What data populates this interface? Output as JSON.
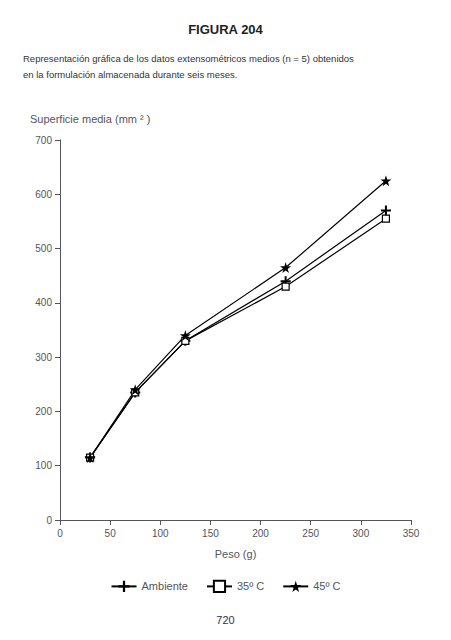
{
  "chart_data": {
    "type": "line",
    "title": "FIGURA 204",
    "subtitle": [
      "Representación gráfica de los datos extensométricos medios (n = 5) obtenidos",
      "en la formulación almacenada durante seis meses."
    ],
    "annotations": [
      "720"
    ],
    "xlabel": "Peso (g)",
    "ylabel": "Superficie media (mm ² )",
    "x": [
      30,
      75,
      125,
      225,
      325
    ],
    "series": [
      {
        "name": "Ambiente",
        "color": "#000000",
        "marker": "plus",
        "values": [
          115,
          235,
          330,
          440,
          570
        ]
      },
      {
        "name": "35º C",
        "color": "#000000",
        "marker": "square",
        "values": [
          115,
          235,
          330,
          430,
          555
        ]
      },
      {
        "name": "45º C",
        "color": "#000000",
        "marker": "star",
        "values": [
          115,
          240,
          340,
          465,
          625
        ]
      }
    ],
    "xlim": [
      0,
      350
    ],
    "ylim": [
      0,
      700
    ],
    "xticks": [
      0,
      50,
      100,
      150,
      200,
      250,
      300,
      350
    ],
    "yticks": [
      0,
      100,
      200,
      300,
      400,
      500,
      600,
      700
    ],
    "grid": false,
    "legend": "bottom"
  }
}
